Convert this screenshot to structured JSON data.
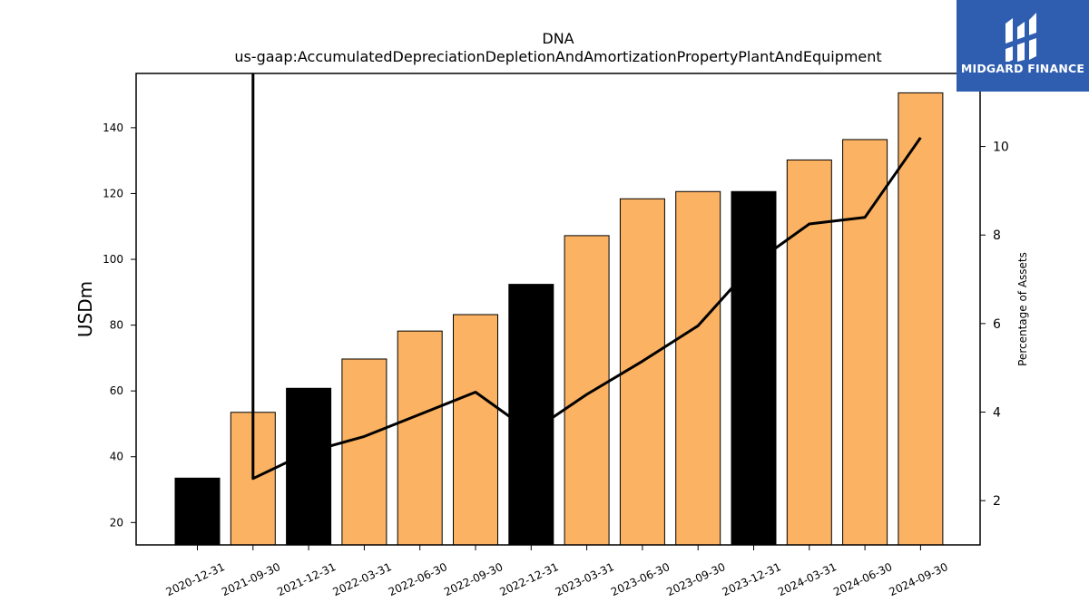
{
  "logo": {
    "text": "MIDGARD FINANCE",
    "bg_color": "#2f5eb0"
  },
  "chart_data": {
    "type": "bar",
    "title": "DNA",
    "subtitle": "us-gaap:AccumulatedDepreciationDepletionAndAmortizationPropertyPlantAndEquipment",
    "ylabel": "USDm",
    "y2label": "Percentage of Assets",
    "categories": [
      "2020-12-31",
      "2021-09-30",
      "2021-12-31",
      "2022-03-31",
      "2022-06-30",
      "2022-09-30",
      "2022-12-31",
      "2023-03-31",
      "2023-06-30",
      "2023-09-30",
      "2023-12-31",
      "2024-03-31",
      "2024-06-30",
      "2024-09-30"
    ],
    "values": [
      33.5,
      53.5,
      60.8,
      69.7,
      78.2,
      83.2,
      92.4,
      107.2,
      118.4,
      120.6,
      120.6,
      130.2,
      136.4,
      150.6
    ],
    "bar_colors": [
      "#000000",
      "#fbb262",
      "#000000",
      "#fbb262",
      "#fbb262",
      "#fbb262",
      "#000000",
      "#fbb262",
      "#fbb262",
      "#fbb262",
      "#000000",
      "#fbb262",
      "#fbb262",
      "#fbb262"
    ],
    "ylim": [
      13.2,
      156.5
    ],
    "yticks": [
      20,
      40,
      60,
      80,
      100,
      120,
      140
    ],
    "line": {
      "name": "Percentage of Assets",
      "values": [
        20,
        2.5,
        3.1,
        3.45,
        3.95,
        4.45,
        3.55,
        4.4,
        5.15,
        5.95,
        7.35,
        8.25,
        8.4,
        10.2
      ]
    },
    "y2lim": [
      1.0,
      11.65
    ],
    "y2ticks": [
      2,
      4,
      6,
      8,
      10
    ],
    "colors": {
      "accent": "#fbb262",
      "highlight": "#000000",
      "line": "#000000"
    },
    "grid": false
  }
}
